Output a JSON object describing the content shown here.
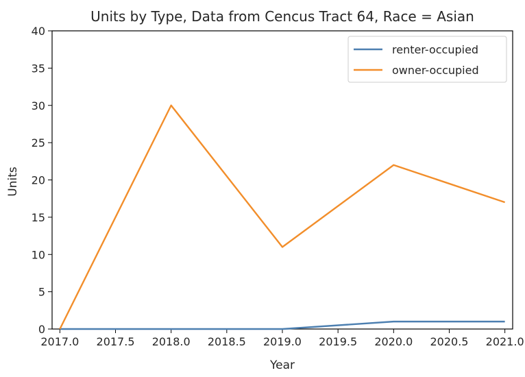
{
  "chart_data": {
    "type": "line",
    "title": "Units by Type, Data from Cencus Tract 64, Race = Asian",
    "xlabel": "Year",
    "ylabel": "Units",
    "xlim": [
      2016.93,
      2021.07
    ],
    "ylim": [
      0,
      40
    ],
    "xticks": [
      2017.0,
      2017.5,
      2018.0,
      2018.5,
      2019.0,
      2019.5,
      2020.0,
      2020.5,
      2021.0
    ],
    "xtick_labels": [
      "2017.0",
      "2017.5",
      "2018.0",
      "2018.5",
      "2019.0",
      "2019.5",
      "2020.0",
      "2020.5",
      "2021.0"
    ],
    "yticks": [
      0,
      5,
      10,
      15,
      20,
      25,
      30,
      35,
      40
    ],
    "ytick_labels": [
      "0",
      "5",
      "10",
      "15",
      "20",
      "25",
      "30",
      "35",
      "40"
    ],
    "x": [
      2017,
      2018,
      2019,
      2020,
      2021
    ],
    "series": [
      {
        "name": "renter-occupied",
        "values": [
          0,
          0,
          0,
          1,
          1
        ],
        "color": "#4c7fb0"
      },
      {
        "name": "owner-occupied",
        "values": [
          0,
          30,
          11,
          22,
          17
        ],
        "color": "#f28e2b"
      }
    ],
    "legend_position": "top-right",
    "grid": false
  }
}
